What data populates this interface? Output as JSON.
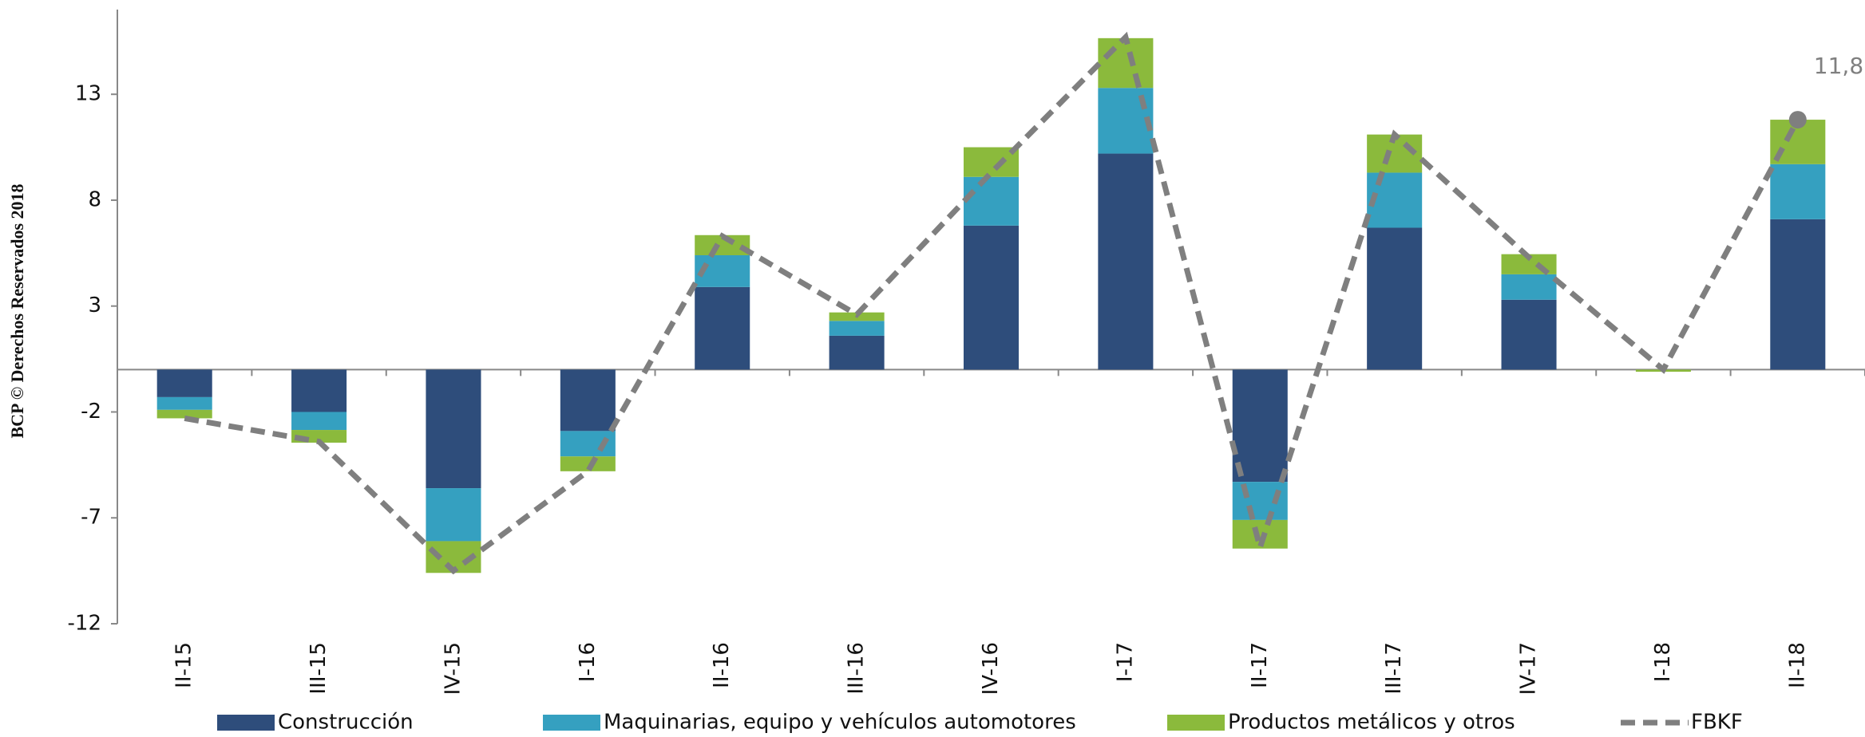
{
  "chart_data": {
    "type": "bar",
    "side_note": "BCP © Derechos Reservados 2018",
    "categories": [
      "II-15",
      "III-15",
      "IV-15",
      "I-16",
      "II-16",
      "III-16",
      "IV-16",
      "I-17",
      "II-17",
      "III-17",
      "IV-17",
      "I-18",
      "II-18"
    ],
    "series": [
      {
        "name": "Construcción",
        "color": "#2e4d7b",
        "values": [
          -1.3,
          -2.0,
          -5.6,
          -2.9,
          3.9,
          1.6,
          6.8,
          10.2,
          -5.3,
          6.7,
          3.3,
          0,
          7.1
        ]
      },
      {
        "name": "Maquinarias, equipo y vehículos automotores",
        "color": "#35a0c0",
        "values": [
          -0.6,
          -0.85,
          -2.5,
          -1.2,
          1.5,
          0.7,
          2.3,
          3.1,
          -1.8,
          2.6,
          1.2,
          0,
          2.6
        ]
      },
      {
        "name": "Productos metálicos y otros",
        "color": "#8bba3c",
        "values": [
          -0.4,
          -0.6,
          -1.5,
          -0.7,
          0.95,
          0.4,
          1.4,
          2.35,
          -1.35,
          1.8,
          0.95,
          -0.1,
          2.1
        ]
      },
      {
        "name": "FBKF",
        "type": "line",
        "color": "#7f7f7f",
        "values": [
          -2.3,
          -3.4,
          -9.5,
          -4.8,
          6.3,
          2.6,
          9.3,
          15.7,
          -8.4,
          11.1,
          5.3,
          0,
          11.8
        ],
        "value_labels": [
          null,
          null,
          null,
          null,
          null,
          null,
          null,
          null,
          null,
          null,
          null,
          null,
          "11,8"
        ]
      }
    ],
    "ylim": [
      -12,
      17
    ],
    "yticks": [
      -12,
      -7,
      -2,
      3,
      8,
      13
    ]
  }
}
